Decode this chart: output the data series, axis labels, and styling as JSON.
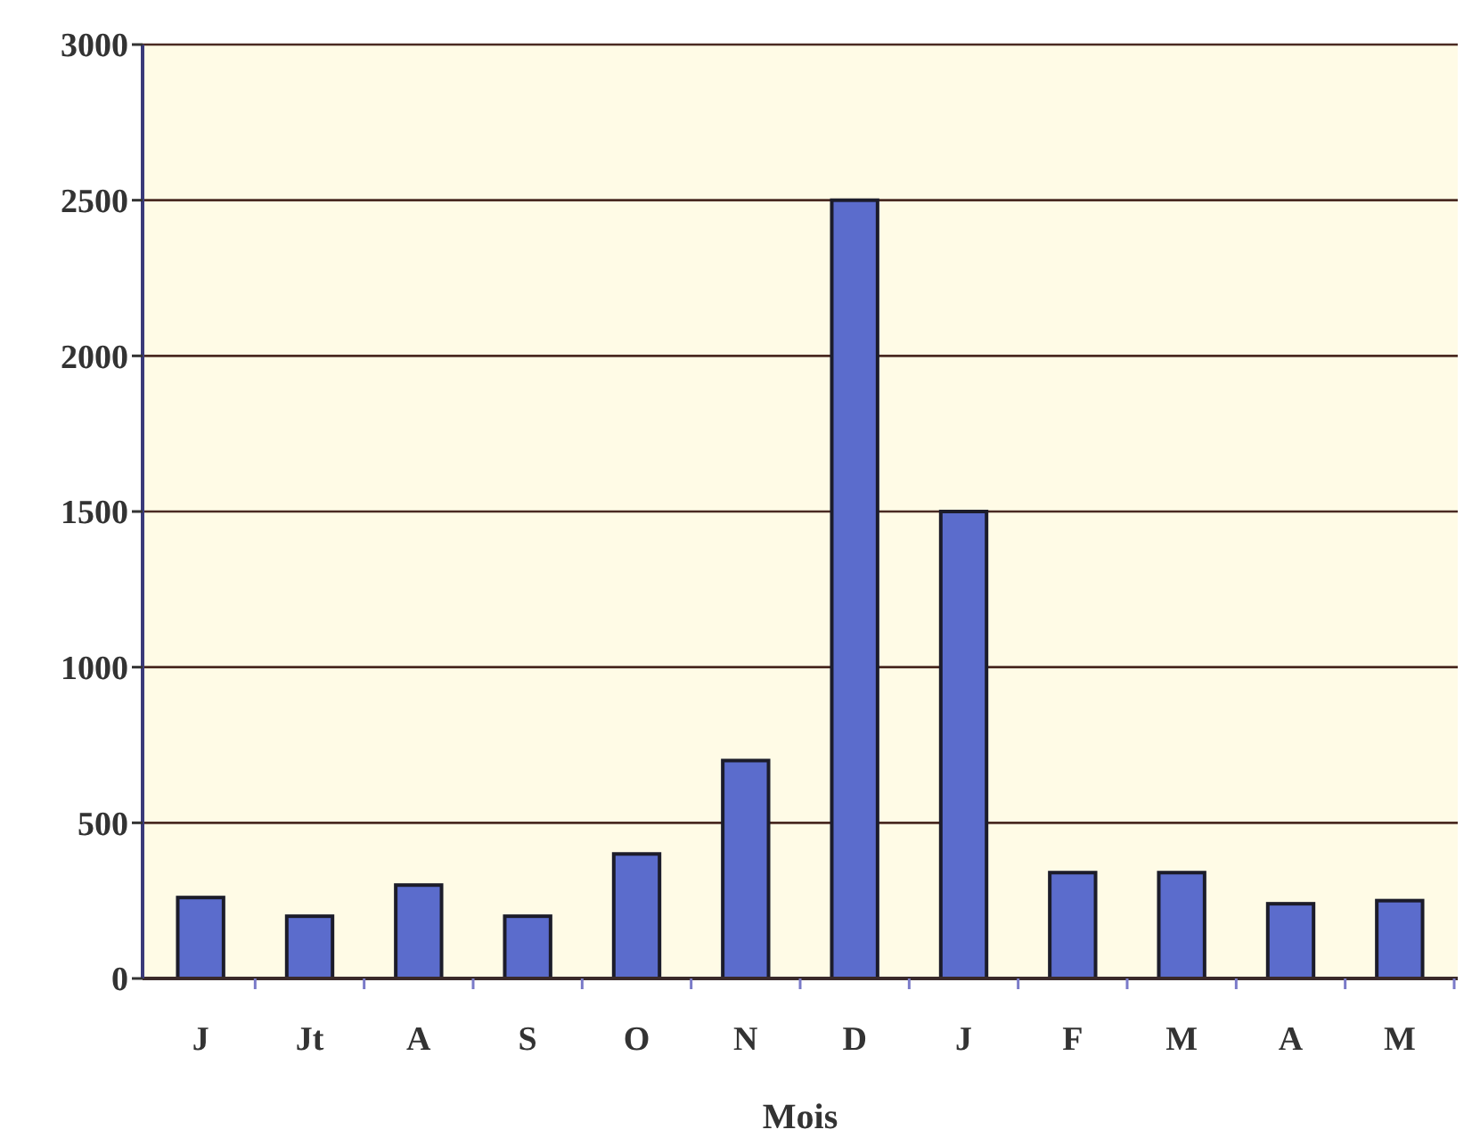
{
  "chart_data": {
    "type": "bar",
    "xlabel": "Mois",
    "categories": [
      "J",
      "Jt",
      "A",
      "S",
      "O",
      "N",
      "D",
      "J",
      "F",
      "M",
      "A",
      "M"
    ],
    "values": [
      260,
      200,
      300,
      200,
      400,
      700,
      2500,
      1500,
      340,
      340,
      240,
      250
    ],
    "color": "#5b6ccc",
    "ylim": [
      0,
      3000
    ],
    "yticks": [
      0,
      500,
      1000,
      1500,
      2000,
      2500,
      3000
    ],
    "grid": "y"
  }
}
